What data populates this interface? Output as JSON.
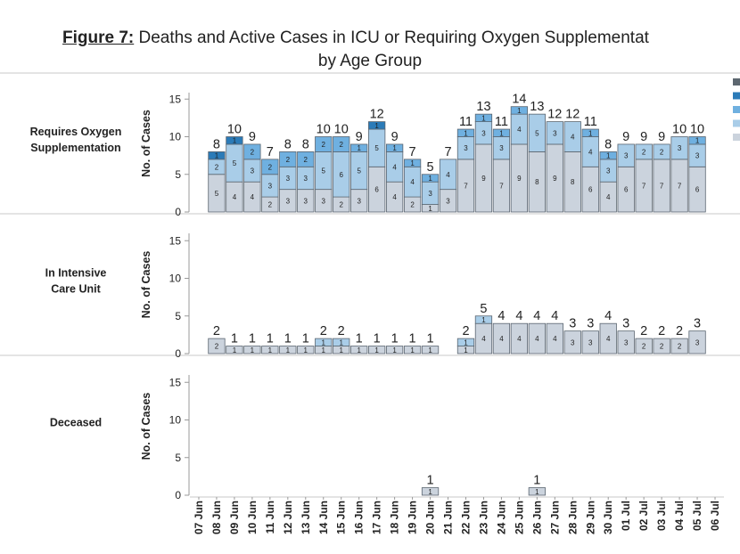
{
  "title": {
    "prefix": "Figure 7:",
    "line1": " Deaths and Active Cases in ICU or Requiring Oxygen Supplementat",
    "line2": "by Age Group"
  },
  "colors": {
    "seg0": "#cbd3dd",
    "seg1": "#a9cde8",
    "seg2": "#6fb0e0",
    "seg3": "#2b7bb8",
    "seg4": "#5d6770",
    "bar_stroke": "#5a6570",
    "divider": "#c9c9c9"
  },
  "legend": {
    "swatch_colors": [
      "#5d6770",
      "#2b7bb8",
      "#6fb0e0",
      "#a9cde8",
      "#cbd3dd"
    ]
  },
  "chart_data": {
    "type": "bar",
    "stacked": true,
    "x": [
      "07 Jun",
      "08 Jun",
      "09 Jun",
      "10 Jun",
      "11 Jun",
      "12 Jun",
      "13 Jun",
      "14 Jun",
      "15 Jun",
      "16 Jun",
      "17 Jun",
      "18 Jun",
      "19 Jun",
      "20 Jun",
      "21 Jun",
      "22 Jun",
      "23 Jun",
      "24 Jun",
      "25 Jun",
      "26 Jun",
      "27 Jun",
      "28 Jun",
      "29 Jun",
      "30 Jun",
      "01 Jul",
      "02 Jul",
      "03 Jul",
      "04 Jul",
      "05 Jul",
      "06 Jul"
    ],
    "ylabel": "No. of Cases",
    "panels": [
      {
        "label": "Requires Oxygen Supplementation",
        "yticks": [
          0,
          5,
          10,
          15
        ],
        "ylim": [
          0,
          16
        ],
        "totals": [
          null,
          8,
          10,
          9,
          7,
          8,
          8,
          10,
          10,
          9,
          12,
          9,
          7,
          5,
          7,
          11,
          13,
          11,
          14,
          13,
          12,
          12,
          11,
          8,
          9,
          9,
          9,
          10,
          10,
          null
        ],
        "stacks": [
          null,
          [
            5,
            2,
            0,
            1,
            0
          ],
          [
            4,
            5,
            0,
            1,
            0
          ],
          [
            4,
            3,
            2,
            0,
            0
          ],
          [
            2,
            3,
            2,
            0,
            0
          ],
          [
            3,
            3,
            2,
            0,
            0
          ],
          [
            3,
            3,
            2,
            0,
            0
          ],
          [
            3,
            5,
            2,
            0,
            0
          ],
          [
            2,
            6,
            2,
            0,
            0
          ],
          [
            3,
            5,
            1,
            0,
            0
          ],
          [
            6,
            5,
            0,
            1,
            0
          ],
          [
            4,
            4,
            1,
            0,
            0
          ],
          [
            2,
            4,
            1,
            0,
            0
          ],
          [
            1,
            3,
            1,
            0,
            0
          ],
          [
            3,
            4,
            0,
            0,
            0
          ],
          [
            7,
            3,
            1,
            0,
            0
          ],
          [
            9,
            3,
            1,
            0,
            0
          ],
          [
            7,
            3,
            1,
            0,
            0
          ],
          [
            9,
            4,
            1,
            0,
            0
          ],
          [
            8,
            5,
            0,
            0,
            0
          ],
          [
            9,
            3,
            0,
            0,
            0
          ],
          [
            8,
            4,
            0,
            0,
            0
          ],
          [
            6,
            4,
            1,
            0,
            0
          ],
          [
            4,
            3,
            1,
            0,
            0
          ],
          [
            6,
            3,
            0,
            0,
            0
          ],
          [
            7,
            2,
            0,
            0,
            0
          ],
          [
            7,
            2,
            0,
            0,
            0
          ],
          [
            7,
            3,
            0,
            0,
            0
          ],
          [
            6,
            3,
            1,
            0,
            0
          ],
          null
        ]
      },
      {
        "label": "In Intensive Care Unit",
        "yticks": [
          0,
          5,
          10,
          15
        ],
        "ylim": [
          0,
          16
        ],
        "totals": [
          null,
          2,
          1,
          1,
          1,
          1,
          1,
          2,
          2,
          1,
          1,
          1,
          1,
          1,
          null,
          2,
          5,
          4,
          4,
          4,
          4,
          3,
          3,
          4,
          3,
          2,
          2,
          2,
          3,
          null
        ],
        "stacks": [
          null,
          [
            2,
            0
          ],
          [
            1,
            0
          ],
          [
            1,
            0
          ],
          [
            1,
            0
          ],
          [
            1,
            0
          ],
          [
            1,
            0
          ],
          [
            1,
            1
          ],
          [
            1,
            1
          ],
          [
            1,
            0
          ],
          [
            1,
            0
          ],
          [
            1,
            0
          ],
          [
            1,
            0
          ],
          [
            1,
            0
          ],
          null,
          [
            1,
            1
          ],
          [
            4,
            1
          ],
          [
            4,
            0
          ],
          [
            4,
            0
          ],
          [
            4,
            0
          ],
          [
            4,
            0
          ],
          [
            3,
            0
          ],
          [
            3,
            0
          ],
          [
            4,
            0
          ],
          [
            3,
            0
          ],
          [
            2,
            0
          ],
          [
            2,
            0
          ],
          [
            2,
            0
          ],
          [
            3,
            0
          ],
          null
        ]
      },
      {
        "label": "Deceased",
        "yticks": [
          0,
          5,
          10,
          15
        ],
        "ylim": [
          0,
          16
        ],
        "totals": [
          null,
          null,
          null,
          null,
          null,
          null,
          null,
          null,
          null,
          null,
          null,
          null,
          null,
          1,
          null,
          null,
          null,
          null,
          null,
          1,
          null,
          null,
          null,
          null,
          null,
          null,
          null,
          null,
          null,
          null
        ],
        "stacks": [
          null,
          null,
          null,
          null,
          null,
          null,
          null,
          null,
          null,
          null,
          null,
          null,
          null,
          [
            1
          ],
          null,
          null,
          null,
          null,
          null,
          [
            1
          ],
          null,
          null,
          null,
          null,
          null,
          null,
          null,
          null,
          null,
          null
        ]
      }
    ]
  }
}
